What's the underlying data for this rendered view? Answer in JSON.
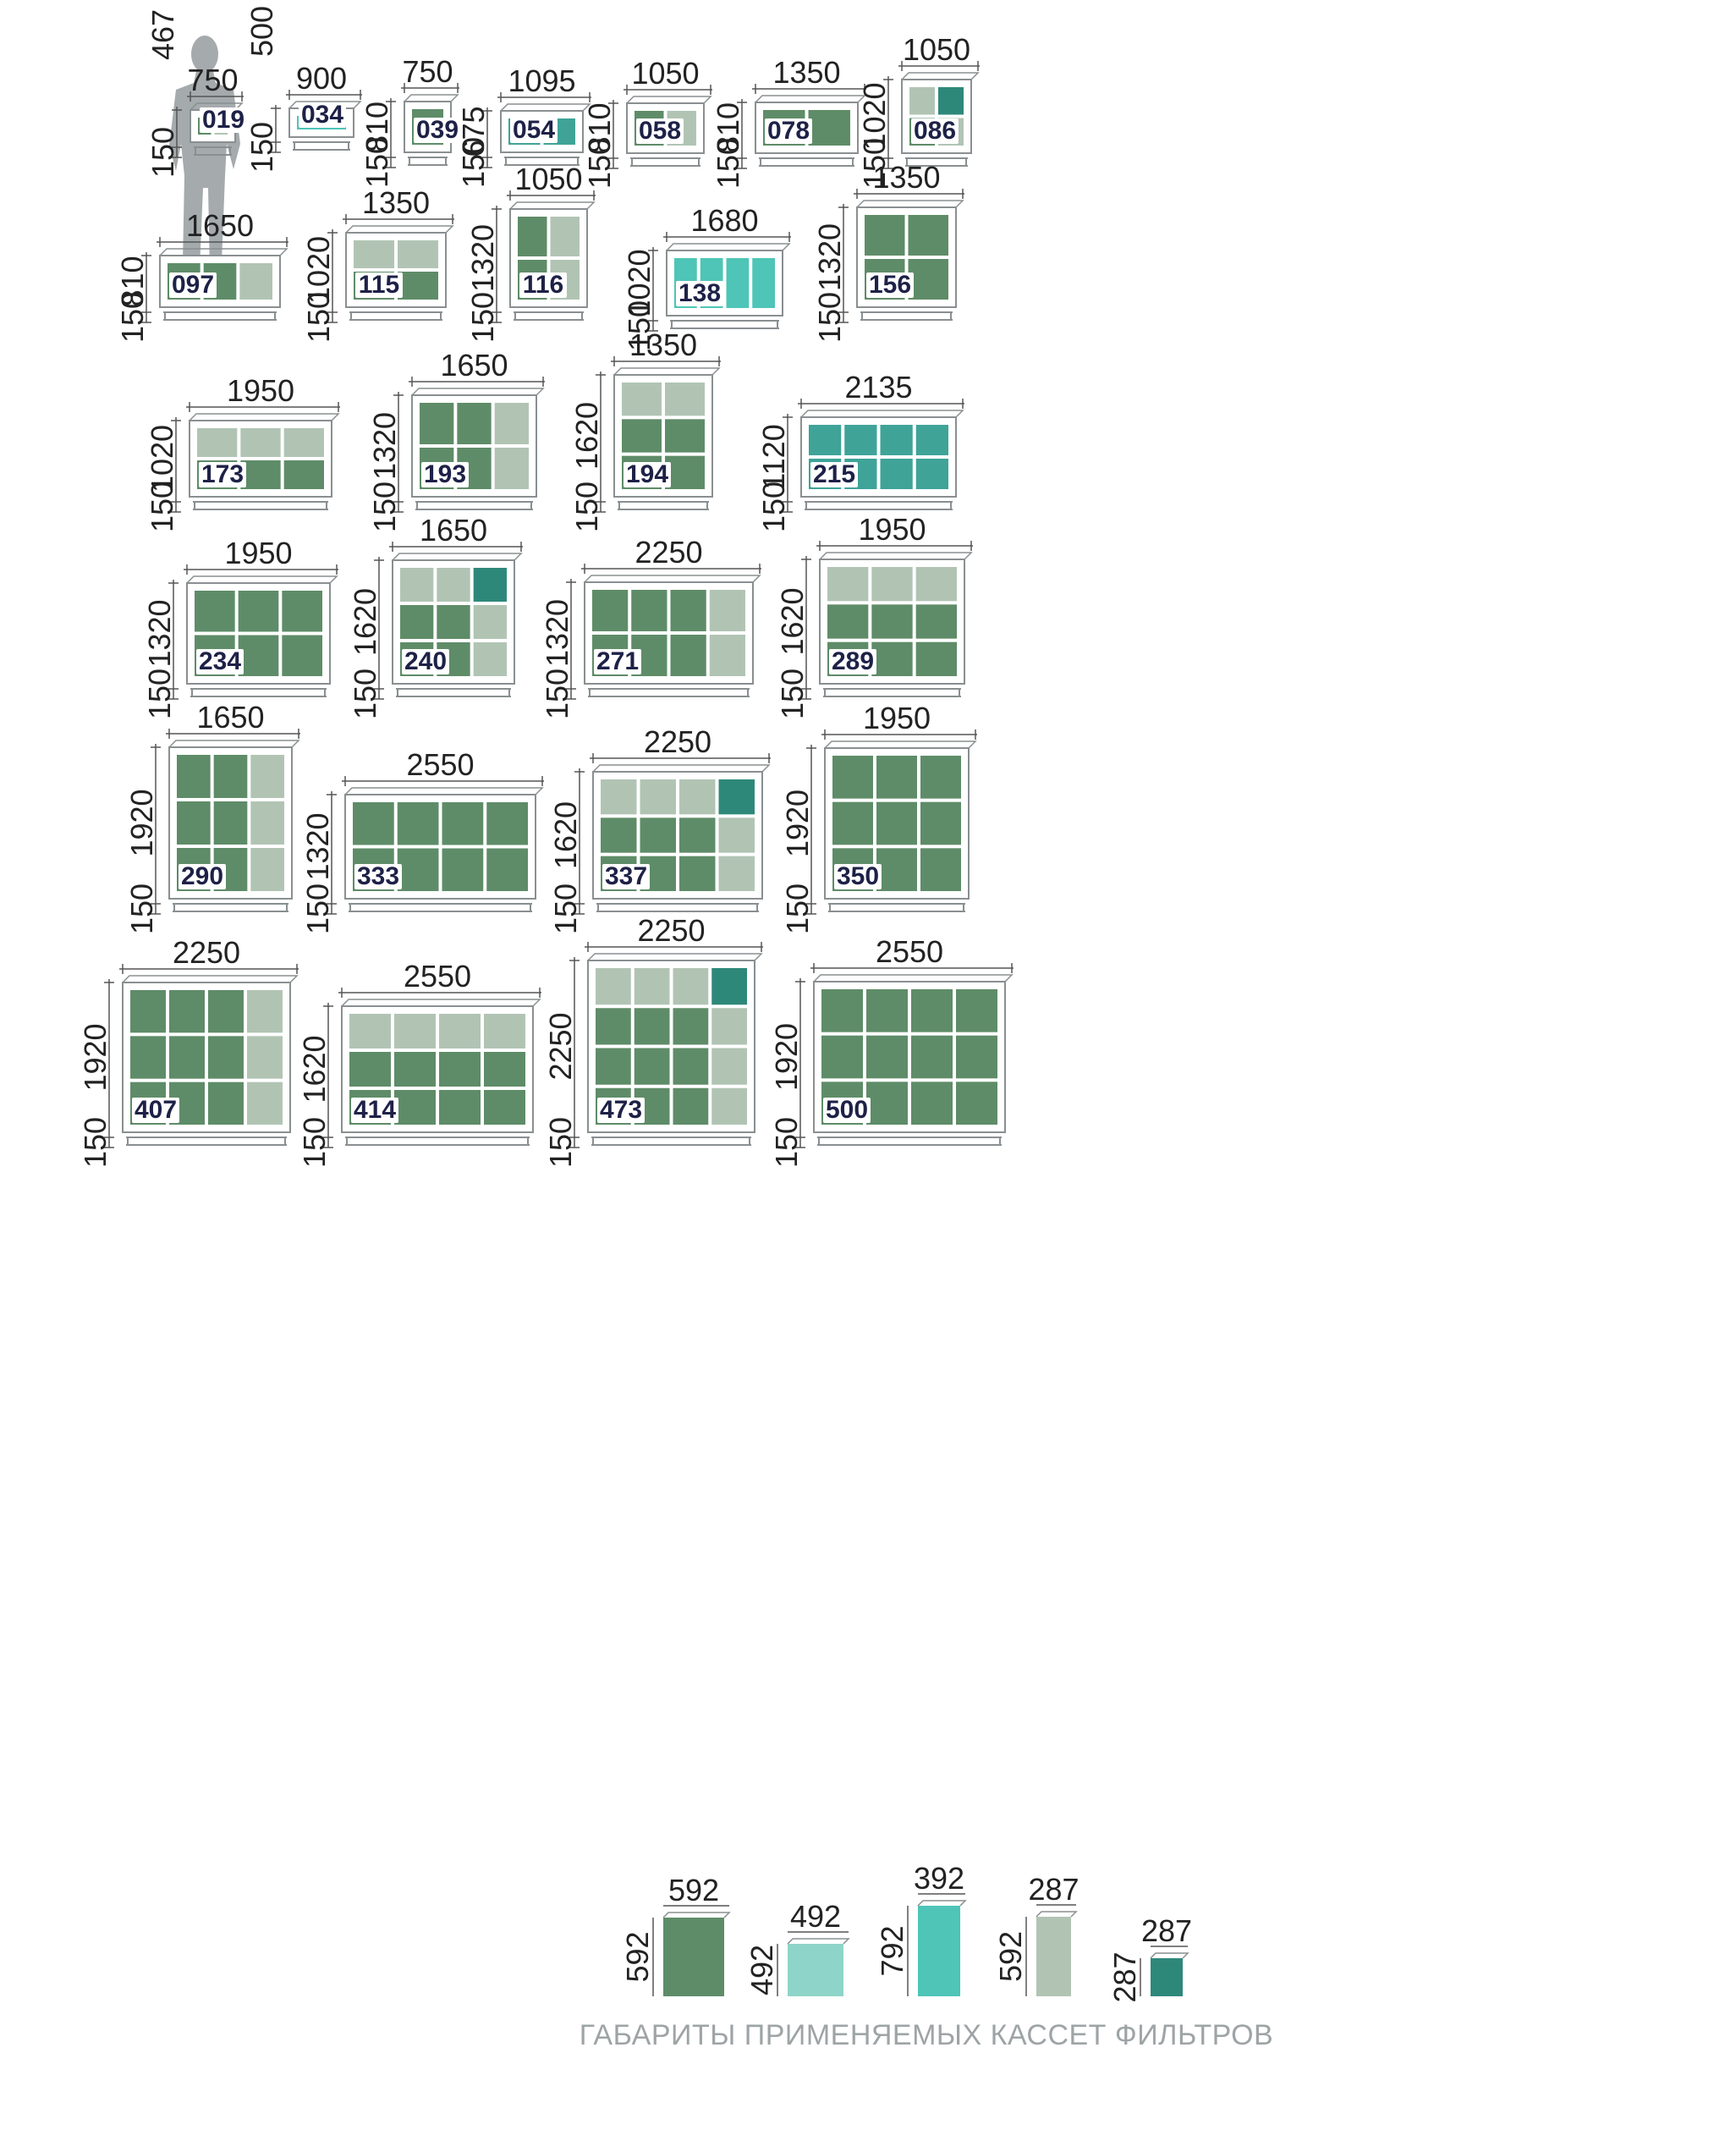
{
  "colors": {
    "filter_592": "#5e8c68",
    "filter_492": "#8fd4c8",
    "filter_392": "#4ec5b6",
    "filter_287x592": "#b1c4b4",
    "filter_287x287": "#2e887a",
    "teal_panel": "#3fa398",
    "frame": "#8a8f91",
    "dim_text": "#222222",
    "caption": "#9ea4a6",
    "label_text": "#1e2147"
  },
  "person_icon": "person-silhouette-icon",
  "units": [
    {
      "label": "019",
      "width": "750",
      "height": "467",
      "base": "150"
    },
    {
      "label": "034",
      "width": "900",
      "height": "500",
      "base": "150"
    },
    {
      "label": "039",
      "width": "750",
      "height": "810",
      "base": "150"
    },
    {
      "label": "054",
      "width": "1095",
      "height": "675",
      "base": "150"
    },
    {
      "label": "058",
      "width": "1050",
      "height": "810",
      "base": "150"
    },
    {
      "label": "078",
      "width": "1350",
      "height": "810",
      "base": "150"
    },
    {
      "label": "086",
      "width": "1050",
      "height": "1020",
      "base": "150"
    },
    {
      "label": "097",
      "width": "1650",
      "height": "810",
      "base": "150"
    },
    {
      "label": "115",
      "width": "1350",
      "height": "1020",
      "base": "150"
    },
    {
      "label": "116",
      "width": "1050",
      "height": "1320",
      "base": "150"
    },
    {
      "label": "138",
      "width": "1680",
      "height": "1020",
      "base": "150"
    },
    {
      "label": "156",
      "width": "1350",
      "height": "1320",
      "base": "150"
    },
    {
      "label": "173",
      "width": "1950",
      "height": "1020",
      "base": "150"
    },
    {
      "label": "193",
      "width": "1650",
      "height": "1320",
      "base": "150"
    },
    {
      "label": "194",
      "width": "1350",
      "height": "1620",
      "base": "150"
    },
    {
      "label": "215",
      "width": "2135",
      "height": "1120",
      "base": "150"
    },
    {
      "label": "234",
      "width": "1950",
      "height": "1320",
      "base": "150"
    },
    {
      "label": "240",
      "width": "1650",
      "height": "1620",
      "base": "150"
    },
    {
      "label": "271",
      "width": "2250",
      "height": "1320",
      "base": "150"
    },
    {
      "label": "289",
      "width": "1950",
      "height": "1620",
      "base": "150"
    },
    {
      "label": "290",
      "width": "1650",
      "height": "1920",
      "base": "150"
    },
    {
      "label": "333",
      "width": "2550",
      "height": "1320",
      "base": "150"
    },
    {
      "label": "337",
      "width": "2250",
      "height": "1620",
      "base": "150"
    },
    {
      "label": "350",
      "width": "1950",
      "height": "1920",
      "base": "150"
    },
    {
      "label": "407",
      "width": "2250",
      "height": "1920",
      "base": "150"
    },
    {
      "label": "414",
      "width": "2550",
      "height": "1620",
      "base": "150"
    },
    {
      "label": "473",
      "width": "2250",
      "height": "2250",
      "base": "150"
    },
    {
      "label": "500",
      "width": "2550",
      "height": "1920",
      "base": "150"
    }
  ],
  "legend": [
    {
      "width": "592",
      "height": "592"
    },
    {
      "width": "492",
      "height": "492"
    },
    {
      "width": "392",
      "height": "792"
    },
    {
      "width": "287",
      "height": "592"
    },
    {
      "width": "287",
      "height": "287"
    }
  ],
  "caption": "ГАБАРИТЫ ПРИМЕНЯЕМЫХ КАССЕТ ФИЛЬТРОВ"
}
